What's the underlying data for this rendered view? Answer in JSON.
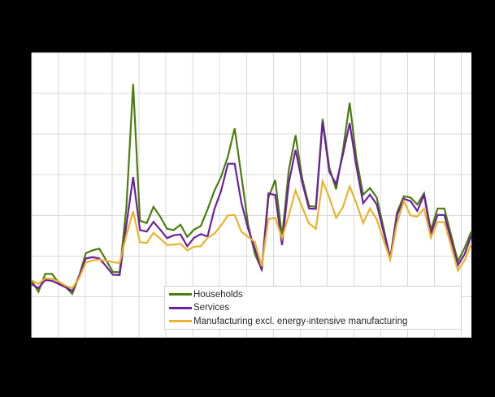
{
  "colors": {
    "page_background": "#000000",
    "plot_background": "#ffffff",
    "gridline": "#d9d9d9",
    "legend_border": "#cfcfcf",
    "legend_text": "#262626"
  },
  "chart_data": {
    "type": "line",
    "title": "",
    "xlabel": "",
    "ylabel": "",
    "x_axis": {
      "labels_visible": false,
      "points": 66,
      "points_per_gridline": 4,
      "vertical_gridlines": 17
    },
    "y_axis": {
      "labels_visible": false,
      "min": 0,
      "max": 70,
      "gridline_step": 10
    },
    "legend": {
      "position": "inside-bottom",
      "background": "#ffffff"
    },
    "series": [
      {
        "name": "Households",
        "color": "#4b7d0c",
        "values": [
          13.9,
          11.2,
          15.6,
          15.6,
          13.4,
          12.4,
          10.7,
          15.0,
          20.7,
          21.4,
          21.8,
          19.0,
          16.1,
          16.0,
          32.0,
          62.3,
          28.7,
          28.1,
          32.1,
          29.7,
          26.7,
          26.4,
          27.7,
          24.7,
          26.5,
          27.4,
          31.5,
          36.0,
          39.5,
          44.5,
          51.4,
          39.7,
          27.7,
          20.4,
          16.7,
          34.4,
          38.7,
          24.7,
          41.1,
          49.7,
          39.0,
          32.3,
          32.1,
          53.7,
          41.7,
          36.4,
          46.0,
          57.7,
          44.0,
          35.1,
          36.7,
          34.4,
          27.0,
          19.4,
          30.7,
          34.7,
          34.4,
          32.7,
          35.4,
          26.4,
          31.7,
          31.7,
          25.1,
          18.7,
          22.0,
          26.1
        ]
      },
      {
        "name": "Services",
        "color": "#6c1f9e",
        "values": [
          13.1,
          12.1,
          14.1,
          13.9,
          13.1,
          12.3,
          11.4,
          15.1,
          19.4,
          19.7,
          19.4,
          17.5,
          15.4,
          15.3,
          27.7,
          39.4,
          26.4,
          26.0,
          28.4,
          26.5,
          24.4,
          25.1,
          25.3,
          22.4,
          24.5,
          25.4,
          24.8,
          31.5,
          36.0,
          42.7,
          42.7,
          33.1,
          26.7,
          21.7,
          16.5,
          35.4,
          35.0,
          22.7,
          38.0,
          46.1,
          38.0,
          31.7,
          31.6,
          53.0,
          40.7,
          37.7,
          45.0,
          52.7,
          42.0,
          33.0,
          35.1,
          32.7,
          26.0,
          19.4,
          30.0,
          34.1,
          33.5,
          31.1,
          35.1,
          25.5,
          30.1,
          30.1,
          24.0,
          17.7,
          20.5,
          25.1
        ]
      },
      {
        "name": "Manufacturing excl. energy-intensive manufacturing",
        "color": "#eab22d",
        "values": [
          14.0,
          13.1,
          14.5,
          14.4,
          13.7,
          12.7,
          12.1,
          14.5,
          18.4,
          18.9,
          19.1,
          18.9,
          18.5,
          18.3,
          25.1,
          31.0,
          23.4,
          23.2,
          25.7,
          24.3,
          22.7,
          22.8,
          23.0,
          21.4,
          22.3,
          22.4,
          24.5,
          25.5,
          27.5,
          30.0,
          30.1,
          26.0,
          24.7,
          23.4,
          17.5,
          29.1,
          29.4,
          24.4,
          30.0,
          36.1,
          32.0,
          28.0,
          26.7,
          38.4,
          34.4,
          29.4,
          32.0,
          37.1,
          33.0,
          28.1,
          31.7,
          29.0,
          24.0,
          19.1,
          28.0,
          33.5,
          30.0,
          29.7,
          31.7,
          24.5,
          28.4,
          28.3,
          22.5,
          16.4,
          19.0,
          23.1
        ]
      }
    ]
  }
}
